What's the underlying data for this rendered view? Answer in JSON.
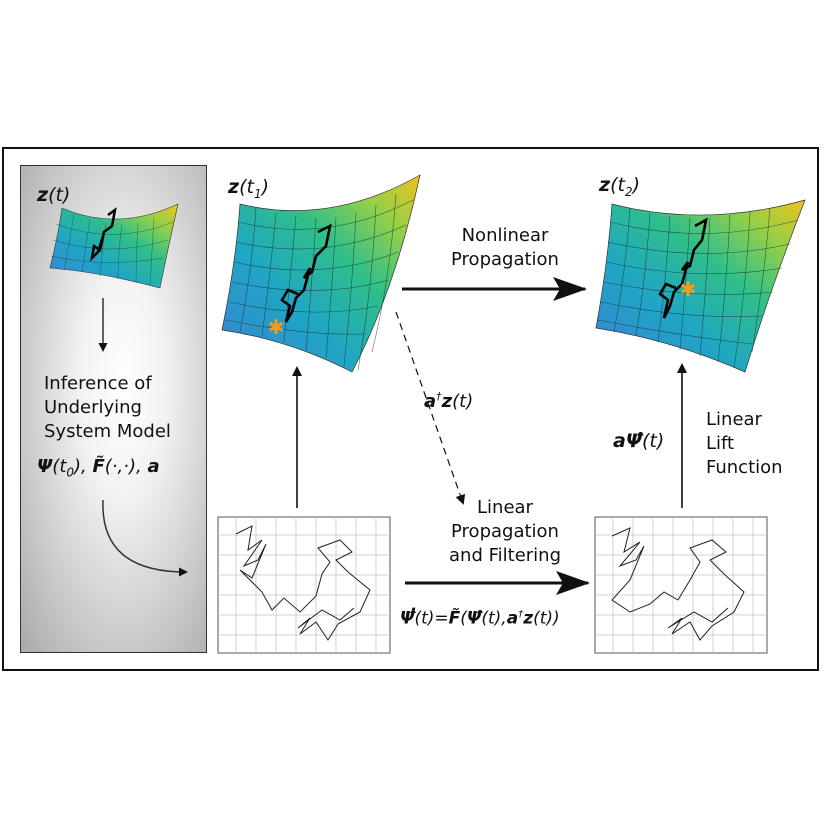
{
  "labels": {
    "z_t_bold": "z",
    "z_t_rest": "(t)",
    "z_t1_bold": "z",
    "z_t1_rest": "(t",
    "z_t1_sub": "1",
    "z_t1_close": ")",
    "z_t2_bold": "z",
    "z_t2_rest": "(t",
    "z_t2_sub": "2",
    "z_t2_close": ")",
    "inference_line1": "Inference of",
    "inference_line2": "Underlying",
    "inference_line3": "System Model",
    "model_psi": "Ψ",
    "model_psi_rest": "(t",
    "model_sub": "0",
    "model_mid": "), ",
    "model_F": "F̃",
    "model_F_rest": "(·,·), ",
    "model_a": "a",
    "nonlinear_line1": "Nonlinear",
    "nonlinear_line2": "Propagation",
    "adagger_bold": "a",
    "adagger_sup": "†",
    "adagger_z": "z",
    "adagger_rest": "(t)",
    "linear_prop_line1": "Linear",
    "linear_prop_line2": "Propagation",
    "linear_prop_line3": "and Filtering",
    "lift_line1": "Linear",
    "lift_line2": "Lift",
    "lift_line3": "Function",
    "apsi_a": "a",
    "apsi_psi": "Ψ̂",
    "apsi_rest": "(t)",
    "eq_lhs": "Ψ̂̇",
    "eq_mid": "(t)=",
    "eq_F": "F̃",
    "eq_open": "(",
    "eq_psi": "Ψ̂",
    "eq_comma": "(t),",
    "eq_a": "a",
    "eq_sup": "†",
    "eq_z": "z",
    "eq_close": "(t))"
  },
  "colors": {
    "frame": "#111111",
    "surface_low": "#3b7fd6",
    "surface_mid": "#21b39a",
    "surface_high": "#e8c61d",
    "star": "#f29a1e",
    "grid": "#bfbfbf"
  }
}
